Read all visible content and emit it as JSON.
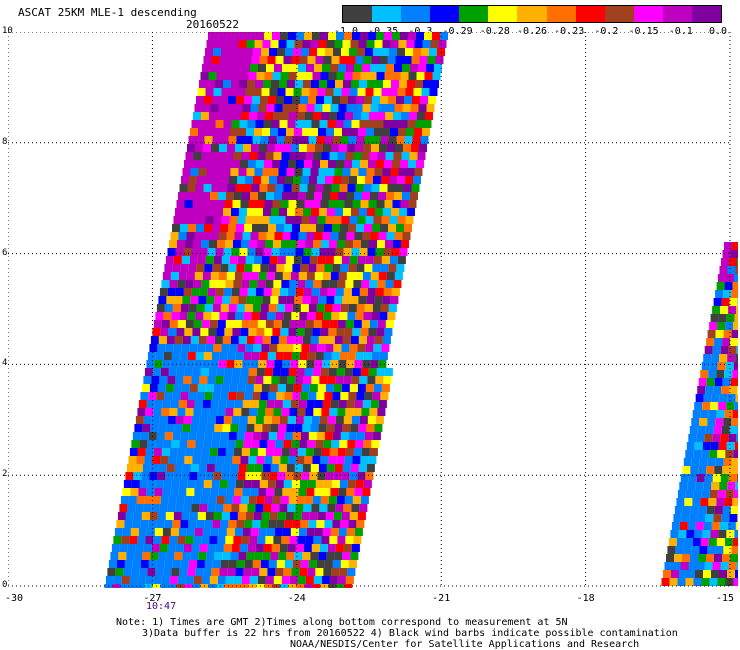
{
  "header": {
    "title": "ASCAT 25KM MLE-1 descending",
    "date": "20160522"
  },
  "colorbar": {
    "colors": [
      "#404040",
      "#00c0ff",
      "#0080ff",
      "#0000ff",
      "#00a000",
      "#ffff00",
      "#ffb000",
      "#ff7000",
      "#ff0000",
      "#a04020",
      "#ff00ff",
      "#c000c0",
      "#8000a0"
    ],
    "labels": [
      "-1.0",
      "-0.35",
      "-0.3",
      "-0.29",
      "-0.28",
      "-0.26",
      "-0.23",
      "-0.2",
      "-0.15",
      "-0.1",
      "0.0"
    ]
  },
  "axes": {
    "x_ticks": [
      "-30",
      "-27",
      "-24",
      "-21",
      "-18",
      "-15"
    ],
    "y_ticks": [
      "0",
      "2",
      "4",
      "6",
      "8",
      "10"
    ],
    "time_label": "10:47"
  },
  "notes": {
    "line1": "Note: 1) Times are GMT 2)Times along bottom correspond to measurement at 5N",
    "line2": "3)Data buffer is 22 hrs from 20160522 4) Black wind barbs indicate possible contamination",
    "line3": "NOAA/NESDIS/Center for Satellite Applications and Research"
  }
}
